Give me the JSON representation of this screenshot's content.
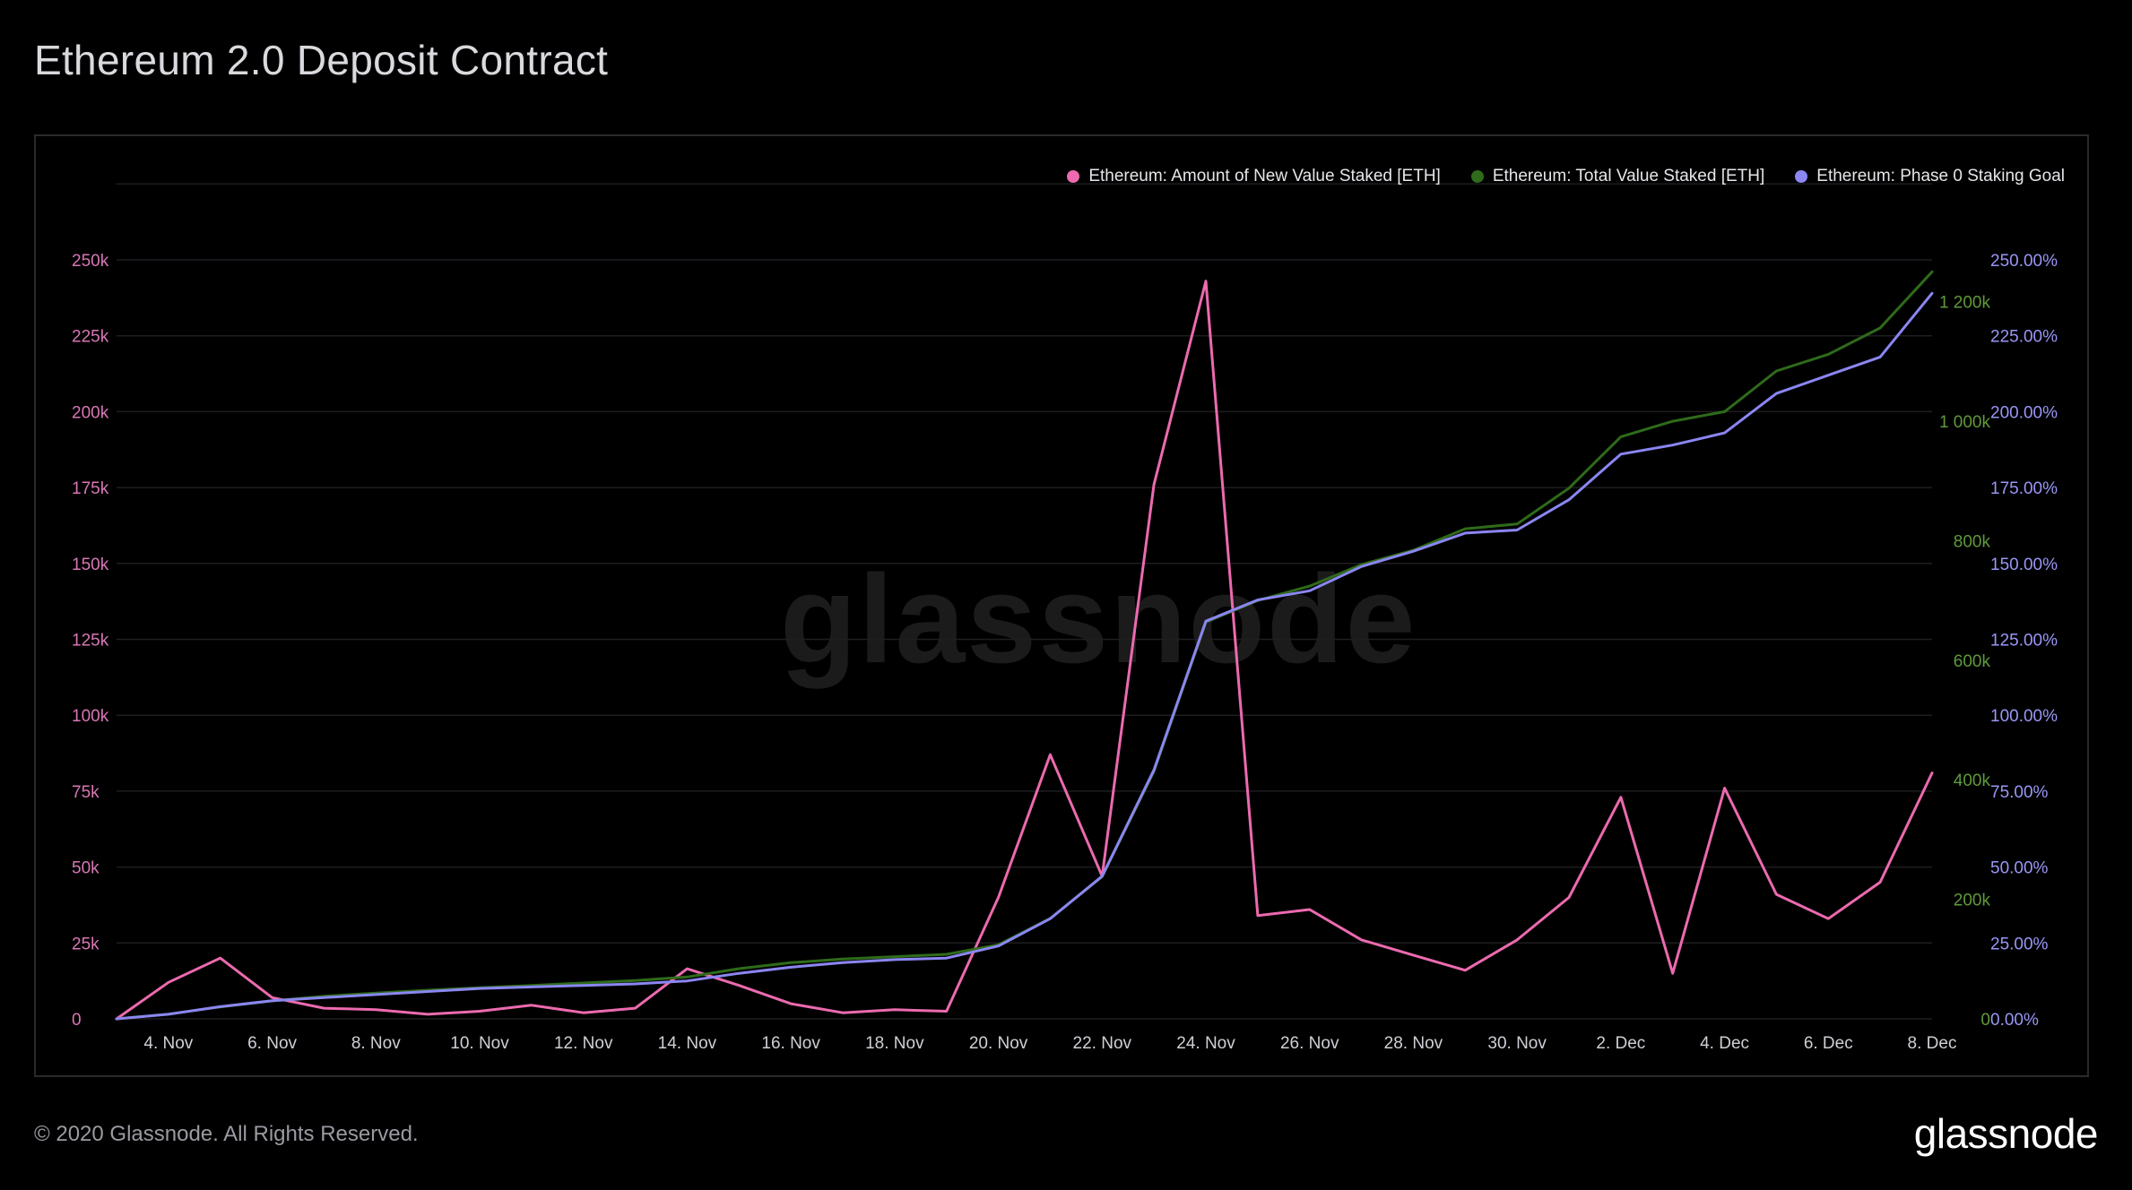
{
  "header": {
    "title": "Ethereum 2.0 Deposit Contract"
  },
  "footer": {
    "copyright": "© 2020 Glassnode. All Rights Reserved.",
    "logo_text": "glassnode"
  },
  "watermark": "glassnode",
  "colors": {
    "background": "#000000",
    "grid": "#1e1e22",
    "new_value": "#ec6aaf",
    "total_value": "#2e6b1a",
    "goal": "#8b86f2",
    "left_axis": "#d777b4",
    "mid_axis": "#5f9a3a",
    "right_axis": "#9a96f6",
    "x_axis": "#cfcfd6"
  },
  "chart_data": {
    "type": "line",
    "title": "Ethereum 2.0 Deposit Contract",
    "x": [
      "3. Nov",
      "4. Nov",
      "5. Nov",
      "6. Nov",
      "7. Nov",
      "8. Nov",
      "9. Nov",
      "10. Nov",
      "11. Nov",
      "12. Nov",
      "13. Nov",
      "14. Nov",
      "15. Nov",
      "16. Nov",
      "17. Nov",
      "18. Nov",
      "19. Nov",
      "20. Nov",
      "21. Nov",
      "22. Nov",
      "23. Nov",
      "24. Nov",
      "25. Nov",
      "26. Nov",
      "27. Nov",
      "28. Nov",
      "29. Nov",
      "30. Nov",
      "1. Dec",
      "2. Dec",
      "3. Dec",
      "4. Dec",
      "5. Dec",
      "6. Dec",
      "7. Dec",
      "8. Dec"
    ],
    "x_tick_labels": [
      "4. Nov",
      "6. Nov",
      "8. Nov",
      "10. Nov",
      "12. Nov",
      "14. Nov",
      "16. Nov",
      "18. Nov",
      "20. Nov",
      "22. Nov",
      "24. Nov",
      "26. Nov",
      "28. Nov",
      "30. Nov",
      "2. Dec",
      "4. Dec",
      "6. Dec",
      "8. Dec"
    ],
    "x_tick_positions": [
      1,
      3,
      5,
      7,
      9,
      11,
      13,
      15,
      17,
      19,
      21,
      23,
      25,
      27,
      29,
      31,
      33,
      35
    ],
    "series": [
      {
        "name": "Ethereum: Amount of New Value Staked [ETH]",
        "axis": "left",
        "color": "#ec6aaf",
        "values": [
          0,
          12000,
          20000,
          7000,
          3500,
          3000,
          1500,
          2500,
          4500,
          2000,
          3500,
          16500,
          11000,
          5000,
          2000,
          3000,
          2500,
          40000,
          87000,
          47000,
          176000,
          243000,
          34000,
          36000,
          26000,
          21000,
          16000,
          26000,
          40000,
          73000,
          15000,
          76000,
          41000,
          33000,
          45000,
          81000
        ]
      },
      {
        "name": "Ethereum: Total Value Staked [ETH]",
        "axis": "mid",
        "color": "#2e6b1a",
        "values": [
          0,
          8000,
          20000,
          30000,
          38000,
          43000,
          48000,
          52000,
          56000,
          60000,
          64000,
          70000,
          84000,
          94000,
          100000,
          104000,
          108000,
          124000,
          168000,
          238000,
          414000,
          664000,
          700000,
          724000,
          760000,
          784000,
          820000,
          828000,
          888000,
          974000,
          1000000,
          1016000,
          1084000,
          1112000,
          1156000,
          1250000
        ]
      },
      {
        "name": "Ethereum: Phase 0 Staking Goal",
        "axis": "right",
        "color": "#8b86f2",
        "values": [
          0,
          1.5,
          4,
          6,
          7,
          8,
          9,
          10,
          10.5,
          11,
          11.5,
          12.5,
          15,
          17,
          18.5,
          19.5,
          20,
          24,
          33,
          47,
          82,
          131,
          138,
          141,
          149,
          154,
          160,
          161,
          171,
          186,
          189,
          193,
          206,
          212,
          218,
          239
        ]
      }
    ],
    "left_axis": {
      "min": 0,
      "max": 250000,
      "ticks": [
        0,
        25000,
        50000,
        75000,
        100000,
        125000,
        150000,
        175000,
        200000,
        225000,
        250000
      ],
      "tick_labels": [
        "0",
        "25k",
        "50k",
        "75k",
        "100k",
        "125k",
        "150k",
        "175k",
        "200k",
        "225k",
        "250k"
      ]
    },
    "mid_axis": {
      "min": 0,
      "max": 1270000,
      "ticks": [
        0,
        200000,
        400000,
        600000,
        800000,
        1000000,
        1200000
      ],
      "tick_labels": [
        "0",
        "200k",
        "400k",
        "600k",
        "800k",
        "1 000k",
        "1 200k"
      ]
    },
    "right_axis": {
      "min": 0,
      "max": 250,
      "ticks": [
        0,
        25,
        50,
        75,
        100,
        125,
        150,
        175,
        200,
        225,
        250
      ],
      "tick_labels": [
        "0.00%",
        "25.00%",
        "50.00%",
        "75.00%",
        "100.00%",
        "125.00%",
        "150.00%",
        "175.00%",
        "200.00%",
        "225.00%",
        "250.00%"
      ]
    },
    "grid": true,
    "legend": "top-right"
  }
}
